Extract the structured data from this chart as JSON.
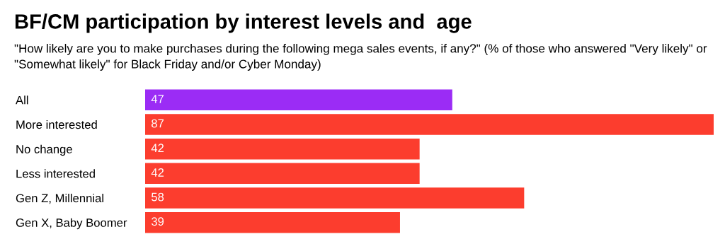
{
  "chart_data": {
    "type": "bar",
    "orientation": "horizontal",
    "title": "BF/CM participation by interest levels and  age",
    "subtitle": "\"How likely are you to make purchases during the following mega sales events, if any?\" (% of those who answered \"Very likely\" or \"Somewhat likely\" for Black Friday and/or Cyber Monday)",
    "categories": [
      "All",
      "More interested",
      "No change",
      "Less interested",
      "Gen Z, Millennial",
      "Gen X, Baby Boomer"
    ],
    "values": [
      47,
      87,
      42,
      42,
      58,
      39
    ],
    "colors": [
      "#9b2cf5",
      "#fc3d2e",
      "#fc3d2e",
      "#fc3d2e",
      "#fc3d2e",
      "#fc3d2e"
    ],
    "data_labels": true,
    "grid": false,
    "legend": false
  }
}
